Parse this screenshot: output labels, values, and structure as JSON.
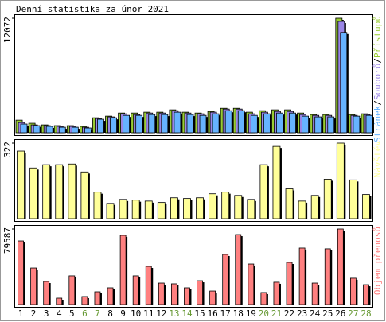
{
  "chart_data": [
    {
      "type": "bar",
      "title": "Denní statistika za únor 2021",
      "ylim": [
        0,
        12072
      ],
      "yticks": [
        12072
      ],
      "legend_separator": "/",
      "series": [
        {
          "name": "Přístupů",
          "color": "#99cc33",
          "values": [
            1330,
            1000,
            830,
            750,
            750,
            670,
            1580,
            1750,
            2080,
            2080,
            2170,
            2170,
            2420,
            2170,
            2080,
            2250,
            2580,
            2580,
            2170,
            2330,
            2420,
            2420,
            2080,
            1920,
            1920,
            12072,
            1920,
            2000
          ]
        },
        {
          "name": "Souborů",
          "color": "#9a86e6",
          "values": [
            1080,
            830,
            750,
            670,
            670,
            580,
            1500,
            1670,
            2000,
            1920,
            2080,
            2080,
            2330,
            2080,
            2000,
            2170,
            2500,
            2500,
            2000,
            2170,
            2250,
            2250,
            1920,
            1830,
            1830,
            11740,
            1830,
            1920
          ]
        },
        {
          "name": "Stránek",
          "color": "#66b3ff",
          "values": [
            920,
            750,
            670,
            580,
            580,
            500,
            1420,
            1580,
            1830,
            1830,
            1920,
            1920,
            2170,
            1920,
            1830,
            2000,
            2330,
            2330,
            1830,
            2000,
            2080,
            2080,
            1750,
            1670,
            1670,
            10580,
            1750,
            1830
          ]
        }
      ]
    },
    {
      "type": "bar",
      "ylim": [
        0,
        322
      ],
      "yticks": [
        322
      ],
      "series": [
        {
          "name": "Návštěv",
          "color": "#ffff99",
          "values": [
            288,
            216,
            230,
            230,
            233,
            199,
            113,
            65,
            82,
            79,
            75,
            69,
            89,
            86,
            89,
            106,
            113,
            99,
            82,
            230,
            308,
            127,
            75,
            99,
            168,
            322,
            165,
            103
          ]
        }
      ]
    },
    {
      "type": "bar",
      "ylim": [
        0,
        79587
      ],
      "yticks": [
        79587
      ],
      "categories": [
        "1",
        "2",
        "3",
        "4",
        "5",
        "6",
        "7",
        "8",
        "9",
        "10",
        "11",
        "12",
        "13",
        "14",
        "15",
        "16",
        "17",
        "18",
        "19",
        "20",
        "21",
        "22",
        "23",
        "24",
        "25",
        "26",
        "27",
        "28"
      ],
      "category_colors": [
        "#000000",
        "#000000",
        "#000000",
        "#000000",
        "#000000",
        "#669933",
        "#669933",
        "#000000",
        "#000000",
        "#000000",
        "#000000",
        "#000000",
        "#669933",
        "#669933",
        "#000000",
        "#000000",
        "#000000",
        "#000000",
        "#000000",
        "#669933",
        "#669933",
        "#000000",
        "#000000",
        "#000000",
        "#000000",
        "#000000",
        "#669933",
        "#669933"
      ],
      "series": [
        {
          "name": "Objem přenosů",
          "color": "#ff8080",
          "values": [
            67000,
            38500,
            24300,
            6700,
            30200,
            8400,
            13400,
            17600,
            72900,
            30200,
            40200,
            22600,
            21800,
            17600,
            25100,
            14200,
            52800,
            73700,
            42700,
            12600,
            23500,
            44400,
            59500,
            22600,
            58700,
            79587,
            27700,
            20900
          ]
        }
      ]
    }
  ]
}
